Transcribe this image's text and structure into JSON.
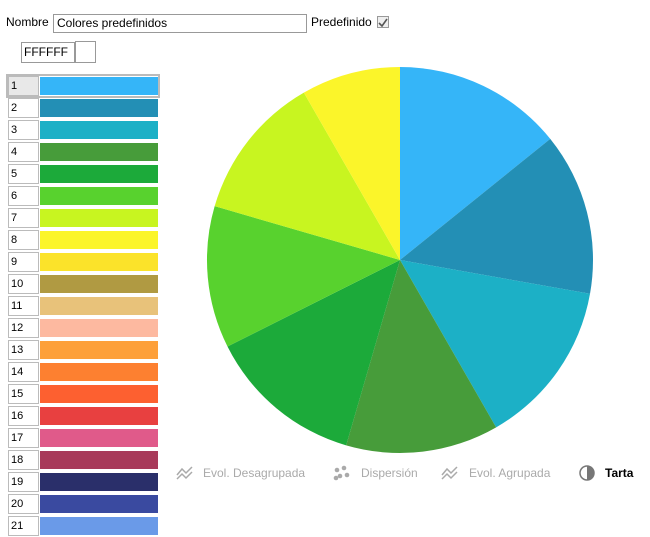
{
  "form": {
    "name_label": "Nombre",
    "name_value": "Colores predefinidos",
    "predefined_label": "Predefinido",
    "predefined_checked": true,
    "hex_value": "FFFFFF"
  },
  "palette": [
    {
      "label": "1",
      "color": "#35b5f8"
    },
    {
      "label": "2",
      "color": "#238fb5"
    },
    {
      "label": "3",
      "color": "#1cb0c6"
    },
    {
      "label": "4",
      "color": "#479c3a"
    },
    {
      "label": "5",
      "color": "#1caa3a"
    },
    {
      "label": "6",
      "color": "#58d22e"
    },
    {
      "label": "7",
      "color": "#c8f520"
    },
    {
      "label": "8",
      "color": "#fbf52a"
    },
    {
      "label": "9",
      "color": "#fbe32a"
    },
    {
      "label": "10",
      "color": "#b09a42"
    },
    {
      "label": "11",
      "color": "#e8c27a"
    },
    {
      "label": "12",
      "color": "#fdb9a0"
    },
    {
      "label": "13",
      "color": "#fda03a"
    },
    {
      "label": "14",
      "color": "#fd8030"
    },
    {
      "label": "15",
      "color": "#fd6030"
    },
    {
      "label": "16",
      "color": "#e84040"
    },
    {
      "label": "17",
      "color": "#e05a8a"
    },
    {
      "label": "18",
      "color": "#a83a5a"
    },
    {
      "label": "19",
      "color": "#2a2f6a"
    },
    {
      "label": "20",
      "color": "#3a4aa0"
    },
    {
      "label": "21",
      "color": "#6a9ae8"
    }
  ],
  "chart_data": {
    "type": "pie",
    "values": [
      14.2,
      13.6,
      13.9,
      12.8,
      13.1,
      11.9,
      12.2,
      8.3
    ],
    "colors": [
      "#35b5f8",
      "#238fb5",
      "#1cb0c6",
      "#479c3a",
      "#1caa3a",
      "#58d22e",
      "#c8f520",
      "#fbf52a"
    ]
  },
  "tabs": [
    {
      "label": "Evol. Desagrupada",
      "icon": "line"
    },
    {
      "label": "Dispersión",
      "icon": "scatter"
    },
    {
      "label": "Evol. Agrupada",
      "icon": "line"
    },
    {
      "label": "Tarta",
      "icon": "pie"
    }
  ],
  "active_tab": 3
}
